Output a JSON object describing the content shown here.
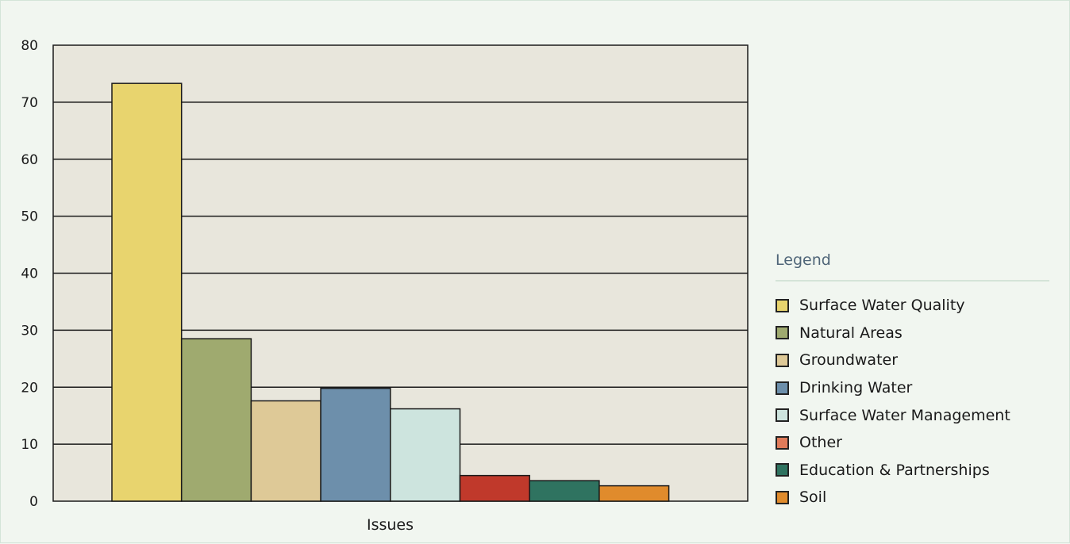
{
  "chart_data": {
    "type": "bar",
    "xlabel": "Issues",
    "ylabel": "",
    "ylim": [
      0,
      80
    ],
    "yticks": [
      0,
      10,
      20,
      30,
      40,
      50,
      60,
      70,
      80
    ],
    "grid": true,
    "legend_position": "right",
    "legend_title": "Legend",
    "series": [
      {
        "name": "Surface Water Quality",
        "value": 73.3,
        "color": "#e8d46e"
      },
      {
        "name": "Natural Areas",
        "value": 28.5,
        "color": "#9faa6f"
      },
      {
        "name": "Groundwater",
        "value": 17.6,
        "color": "#dec997"
      },
      {
        "name": "Drinking Water",
        "value": 19.8,
        "color": "#6d8fab"
      },
      {
        "name": "Surface Water Management",
        "value": 16.2,
        "color": "#cde4de"
      },
      {
        "name": "Other",
        "value": 4.5,
        "color": "#c0392b"
      },
      {
        "name": "Education & Partnerships",
        "value": 3.6,
        "color": "#2f7360"
      },
      {
        "name": "Soil",
        "value": 2.7,
        "color": "#e08b2c"
      }
    ],
    "legend_swatch_colors": [
      "#e8d46e",
      "#9faa6f",
      "#dec997",
      "#6d8fab",
      "#cde4de",
      "#e07b5a",
      "#2f7360",
      "#e08b2c"
    ]
  },
  "colors": {
    "page_background": "#f1f6f0",
    "plot_background": "#e8e6dc",
    "axis": "#1a1a1a"
  }
}
